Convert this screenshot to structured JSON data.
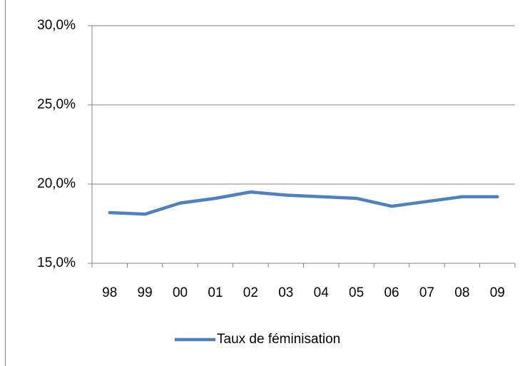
{
  "chart_data": {
    "type": "line",
    "categories": [
      "98",
      "99",
      "00",
      "01",
      "02",
      "03",
      "04",
      "05",
      "06",
      "07",
      "08",
      "09"
    ],
    "series": [
      {
        "name": "Taux de féminisation",
        "color": "#4f81bd",
        "values": [
          18.2,
          18.1,
          18.8,
          19.1,
          19.5,
          19.3,
          19.2,
          19.1,
          18.6,
          18.9,
          19.2,
          19.2
        ]
      }
    ],
    "ylim": [
      15,
      30
    ],
    "yticks": [
      {
        "value": 15,
        "label": "15,0%"
      },
      {
        "value": 20,
        "label": "20,0%"
      },
      {
        "value": 25,
        "label": "25,0%"
      },
      {
        "value": 30,
        "label": "30,0%"
      }
    ],
    "grid": true,
    "legend": "bottom"
  }
}
